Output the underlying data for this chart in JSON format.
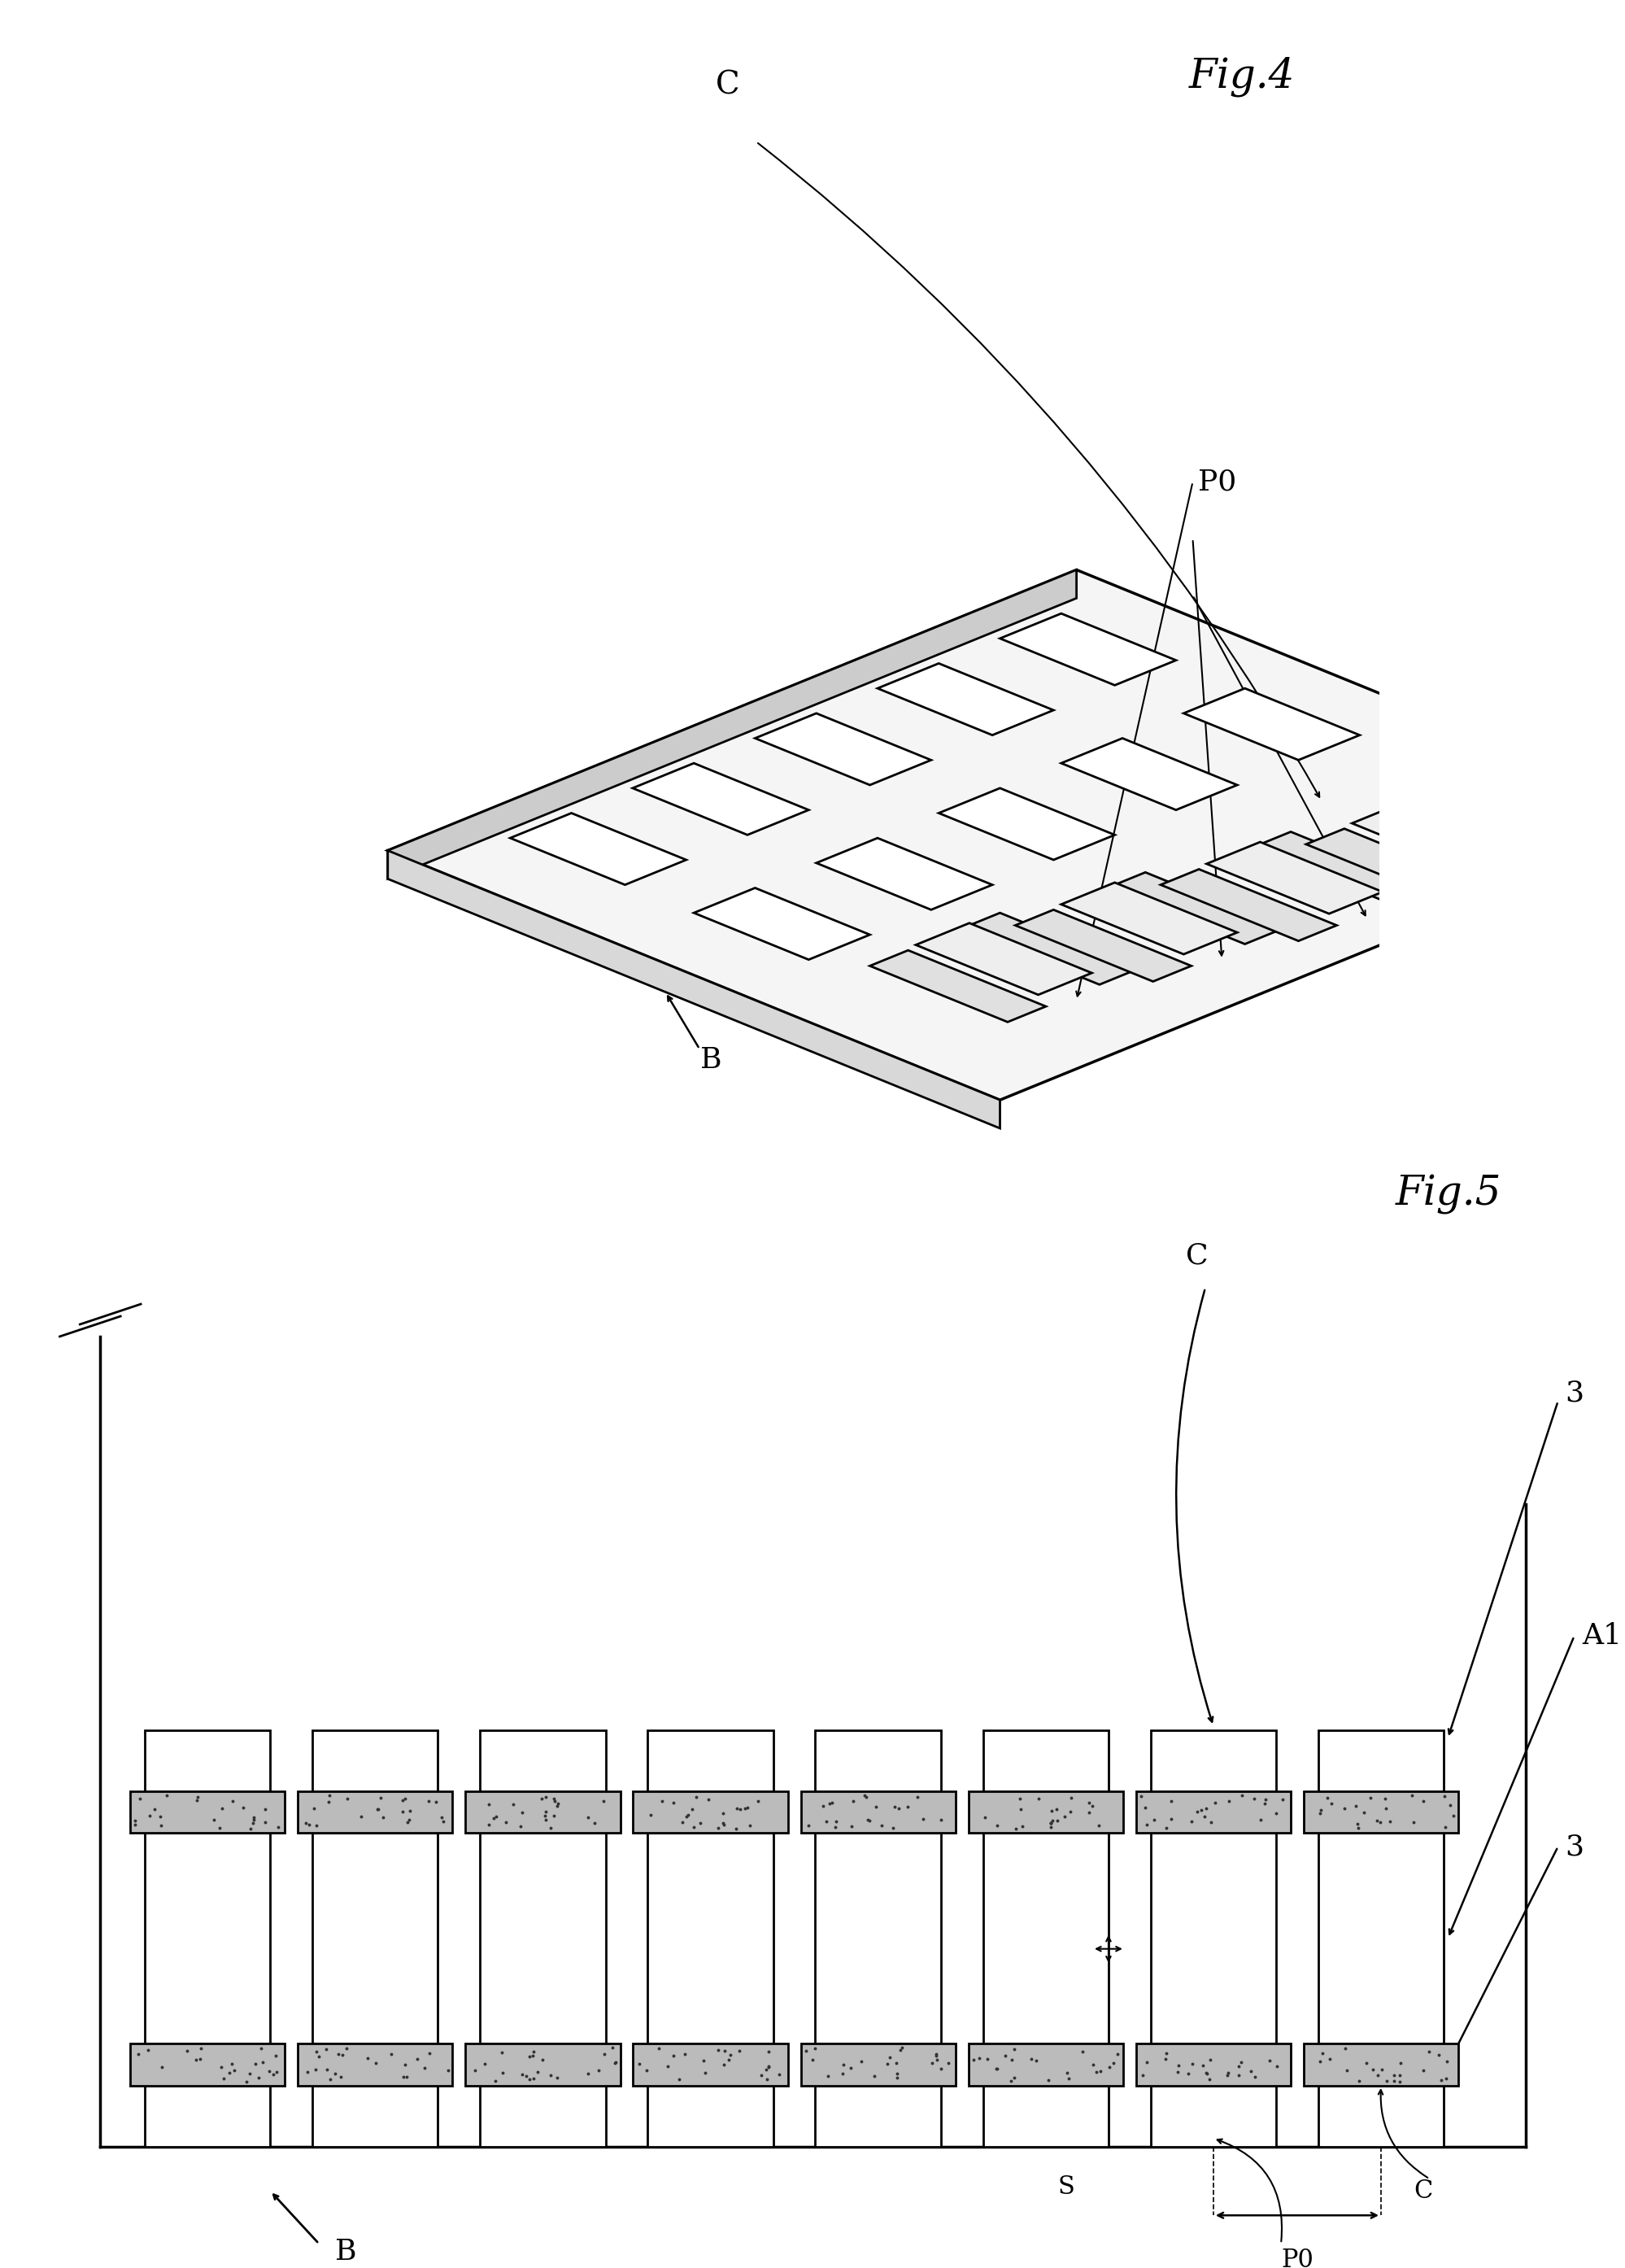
{
  "fig4_title": "Fig.4",
  "fig5_title": "Fig.5",
  "background_color": "#ffffff",
  "line_color": "#000000",
  "label_B_fig4": "B",
  "label_P0_fig4": "P0",
  "label_C_fig4": "C",
  "label_B_fig5": "B",
  "label_P0_fig5": "P0",
  "label_C_fig5": "C",
  "label_3_fig5": "3",
  "label_A1_fig5": "A1",
  "label_S_fig5": "S",
  "n_rows_fig4": 5,
  "n_cols_fig4": 2,
  "n_resistors_fig5": 8,
  "stipple_dots": 22
}
